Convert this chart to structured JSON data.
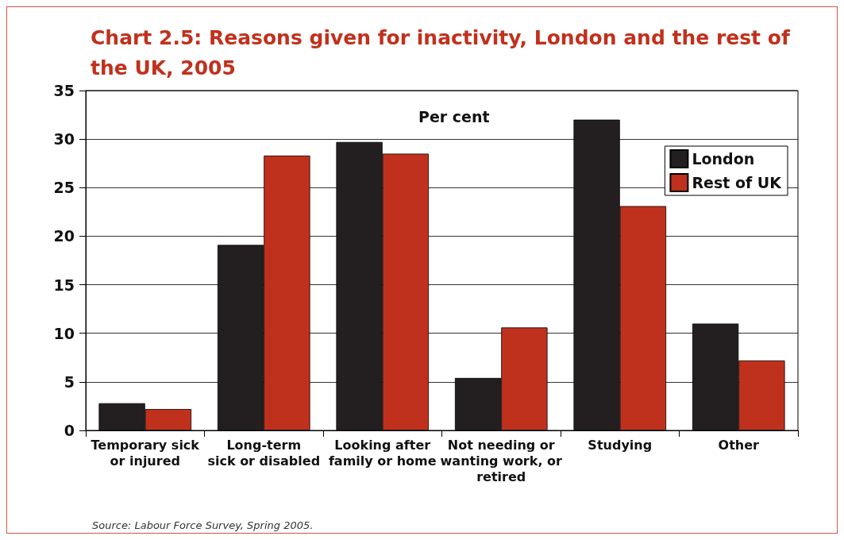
{
  "chart_data": {
    "type": "bar",
    "title": "Chart 2.5: Reasons given for inactivity, London and the rest of the UK, 2005",
    "ylabel": "Per cent",
    "categories": [
      "Temporary sick\nor injured",
      "Long-term\nsick or disabled",
      "Looking after\nfamily or home",
      "Not needing or\nwanting work, or\nretired",
      "Studying",
      "Other"
    ],
    "series": [
      {
        "name": "London",
        "color": "#231f20",
        "values": [
          2.8,
          19.1,
          29.7,
          5.4,
          32.0,
          11.0
        ]
      },
      {
        "name": "Rest of UK",
        "color": "#c0311d",
        "values": [
          2.2,
          28.3,
          28.5,
          10.6,
          23.1,
          7.2
        ]
      }
    ],
    "ylim": [
      0,
      35
    ],
    "yticks": [
      0,
      5,
      10,
      15,
      20,
      25,
      30,
      35
    ],
    "grid": "y",
    "legend": "top right",
    "annotations": [
      "Source: Labour Force Survey, Spring 2005."
    ]
  }
}
